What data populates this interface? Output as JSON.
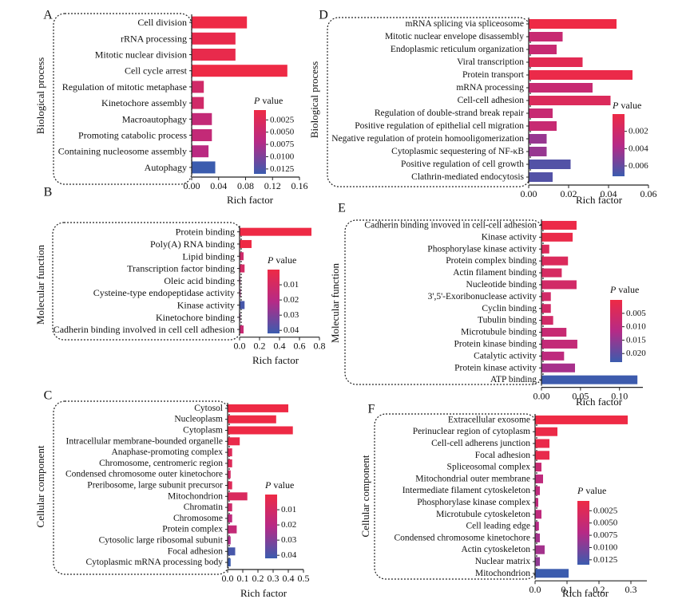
{
  "colors": {
    "scale_high": "#ee2a45",
    "scale_mid": "#b62a86",
    "scale_low": "#3b5cae",
    "frame": "#222222"
  },
  "legend": {
    "title_italic": "P",
    "title_rest": " value"
  },
  "chart_data": [
    {
      "type": "bar",
      "orientation": "horizontal",
      "panel": "A",
      "ylabel": "Biological process",
      "xlabel": "Rich factor",
      "xlim": [
        0,
        0.16
      ],
      "xticks": [
        "0.00",
        "0.04",
        "0.08",
        "0.12",
        "0.16"
      ],
      "xtick_values": [
        0,
        0.04,
        0.08,
        0.12,
        0.16
      ],
      "legend_ticks": [
        "0.0025",
        "0.0050",
        "0.0075",
        "0.0100",
        "0.0125"
      ],
      "legend_tick_values": [
        0.0025,
        0.005,
        0.0075,
        0.01,
        0.0125
      ],
      "plim": [
        0.0005,
        0.0135
      ],
      "categories": [
        "Cell division",
        "rRNA processing",
        "Mitotic nuclear division",
        "Cell cycle arrest",
        "Regulation of mitotic metaphase",
        "Kinetochore assembly",
        "Macroautophagy",
        "Promoting catabolic process",
        "Containing nucleosome assembly",
        "Autophagy"
      ],
      "values": [
        0.082,
        0.065,
        0.065,
        0.142,
        0.018,
        0.018,
        0.03,
        0.03,
        0.025,
        0.035
      ],
      "pvalues": [
        0.0005,
        0.0012,
        0.0012,
        0.0005,
        0.004,
        0.004,
        0.0055,
        0.0055,
        0.0065,
        0.0135
      ]
    },
    {
      "type": "bar",
      "orientation": "horizontal",
      "panel": "B",
      "ylabel": "Molecular function",
      "xlabel": "Rich factor",
      "xlim": [
        0,
        0.8
      ],
      "xticks": [
        "0.0",
        "0.2",
        "0.4",
        "0.6",
        "0.8"
      ],
      "xtick_values": [
        0,
        0.2,
        0.4,
        0.6,
        0.8
      ],
      "legend_ticks": [
        "0.01",
        "0.02",
        "0.03",
        "0.04"
      ],
      "legend_tick_values": [
        0.01,
        0.02,
        0.03,
        0.04
      ],
      "plim": [
        0.0,
        0.042
      ],
      "categories": [
        "Protein binding",
        "Poly(A) RNA binding",
        "Lipid binding",
        "Transcription factor binding",
        "Oleic acid binding",
        "Cysteine-type endopeptidase activity",
        "Kinase activity",
        "Kinetochore binding",
        "Cadherin binding involved in cell cell adhesion"
      ],
      "values": [
        0.72,
        0.12,
        0.04,
        0.05,
        0.005,
        0.01,
        0.05,
        0.005,
        0.04
      ],
      "pvalues": [
        0.0,
        0.0,
        0.012,
        0.01,
        0.02,
        0.022,
        0.04,
        0.026,
        0.015
      ]
    },
    {
      "type": "bar",
      "orientation": "horizontal",
      "panel": "C",
      "ylabel": "Cellular component",
      "xlabel": "Rich factor",
      "xlim": [
        0,
        0.5
      ],
      "xticks": [
        "0.0",
        "0.1",
        "0.2",
        "0.3",
        "0.4",
        "0.5"
      ],
      "xtick_values": [
        0,
        0.1,
        0.2,
        0.3,
        0.4,
        0.5
      ],
      "legend_ticks": [
        "0.01",
        "0.02",
        "0.03",
        "0.04"
      ],
      "legend_tick_values": [
        0.01,
        0.02,
        0.03,
        0.04
      ],
      "plim": [
        0.0,
        0.042
      ],
      "categories": [
        "Cytosol",
        "Nucleoplasm",
        "Cytoplasm",
        "Intracellular membrane-bounded organelle",
        "Anaphase-promoting complex",
        "Chromosome, centromeric region",
        "Condensed chromosome outer kinetochore",
        "Preribosome, large subunit precursor",
        "Mitochondrion",
        "Chromatin",
        "Chromosome",
        "Protein complex",
        "Cytosolic large ribosomal subunit",
        "Focal adhesion",
        "Cytoplasmic mRNA processing body"
      ],
      "values": [
        0.4,
        0.32,
        0.43,
        0.08,
        0.03,
        0.03,
        0.02,
        0.03,
        0.13,
        0.03,
        0.03,
        0.06,
        0.02,
        0.05,
        0.02
      ],
      "pvalues": [
        0.0,
        0.0,
        0.0,
        0.002,
        0.006,
        0.006,
        0.01,
        0.006,
        0.008,
        0.012,
        0.018,
        0.016,
        0.022,
        0.04,
        0.042
      ]
    },
    {
      "type": "bar",
      "orientation": "horizontal",
      "panel": "D",
      "ylabel": "Biological process",
      "xlabel": "Rich factor",
      "xlim": [
        0,
        0.06
      ],
      "xticks": [
        "0.00",
        "0.02",
        "0.04",
        "0.06"
      ],
      "xtick_values": [
        0,
        0.02,
        0.04,
        0.06
      ],
      "legend_ticks": [
        "0.002",
        "0.004",
        "0.006"
      ],
      "legend_tick_values": [
        0.002,
        0.004,
        0.006
      ],
      "plim": [
        0.0,
        0.0072
      ],
      "categories": [
        "mRNA splicing via spliceosome",
        "Mitotic nuclear envelope disassembly",
        "Endoplasmic reticulum organization",
        "Viral transcription",
        "Protein transport",
        "mRNA processing",
        "Cell-cell adhesion",
        "Regulation of double-strand break repair",
        "Positive regulation of epithelial cell migration",
        "Negative regulation of protein homooligomerization",
        "Cytoplasmic sequestering of NF-κB",
        "Positive regulation of cell growth",
        "Clathrin-mediated endocytosis"
      ],
      "values": [
        0.044,
        0.017,
        0.014,
        0.027,
        0.052,
        0.032,
        0.041,
        0.012,
        0.014,
        0.009,
        0.009,
        0.021,
        0.012
      ],
      "pvalues": [
        0.0,
        0.0025,
        0.0025,
        0.0008,
        0.0002,
        0.0025,
        0.0012,
        0.0025,
        0.0025,
        0.0045,
        0.0045,
        0.0065,
        0.0065
      ]
    },
    {
      "type": "bar",
      "orientation": "horizontal",
      "panel": "E",
      "ylabel": "Molecular function",
      "xlabel": "Rich factor",
      "xlim": [
        0,
        0.13
      ],
      "xticks": [
        "0.00",
        "0.05",
        "0.10"
      ],
      "xtick_values": [
        0,
        0.05,
        0.1
      ],
      "legend_ticks": [
        "0.005",
        "0.010",
        "0.015",
        "0.020"
      ],
      "legend_tick_values": [
        0.005,
        0.01,
        0.015,
        0.02
      ],
      "plim": [
        0.0,
        0.0232
      ],
      "categories": [
        "Cadherin binding invoved in cell-cell adhesion",
        "Kinase activity",
        "Phosphorylase kinase activity",
        "Protein complex binding",
        "Actin filament binding",
        "Nucleotide binding",
        "3',5'-Exoribonuclease activity",
        "Cyclin binding",
        "Tubulin binding",
        "Microtubule binding",
        "Protein kinase binding",
        "Catalytic activity",
        "Protein kinase activity",
        "ATP binding"
      ],
      "values": [
        0.045,
        0.04,
        0.01,
        0.034,
        0.026,
        0.045,
        0.012,
        0.012,
        0.015,
        0.032,
        0.046,
        0.029,
        0.043,
        0.123
      ],
      "pvalues": [
        0.0005,
        0.0008,
        0.004,
        0.004,
        0.005,
        0.006,
        0.006,
        0.006,
        0.006,
        0.008,
        0.009,
        0.01,
        0.013,
        0.023
      ]
    },
    {
      "type": "bar",
      "orientation": "horizontal",
      "panel": "F",
      "ylabel": "Cellular component",
      "xlabel": "Rich factor",
      "xlim": [
        0,
        0.35
      ],
      "xticks": [
        "0.0",
        "0.1",
        "0.2",
        "0.3"
      ],
      "xtick_values": [
        0,
        0.1,
        0.2,
        0.3
      ],
      "legend_ticks": [
        "0.0025",
        "0.0050",
        "0.0075",
        "0.0100",
        "0.0125"
      ],
      "legend_tick_values": [
        0.0025,
        0.005,
        0.0075,
        0.01,
        0.0125
      ],
      "plim": [
        0.0005,
        0.0135
      ],
      "categories": [
        "Extracellular exosome",
        "Perinuclear region of cytoplasm",
        "Cell-cell adherens junction",
        "Focal adhesion",
        "Spliceosomal complex",
        "Mitochondrial outer membrane",
        "Intermediate filament cytoskeleton",
        "Phosphorylase kinase complex",
        "Microtubule cytoskeleton",
        "Cell leading edge",
        "Condensed chromosome kinetochore",
        "Actin cytoskeleton",
        "Nuclear matrix",
        "Mitochondrion"
      ],
      "values": [
        0.29,
        0.07,
        0.045,
        0.045,
        0.02,
        0.025,
        0.015,
        0.01,
        0.02,
        0.012,
        0.015,
        0.03,
        0.015,
        0.105
      ],
      "pvalues": [
        0.0005,
        0.0008,
        0.001,
        0.0012,
        0.005,
        0.006,
        0.006,
        0.006,
        0.006,
        0.007,
        0.008,
        0.008,
        0.009,
        0.0135
      ]
    }
  ]
}
